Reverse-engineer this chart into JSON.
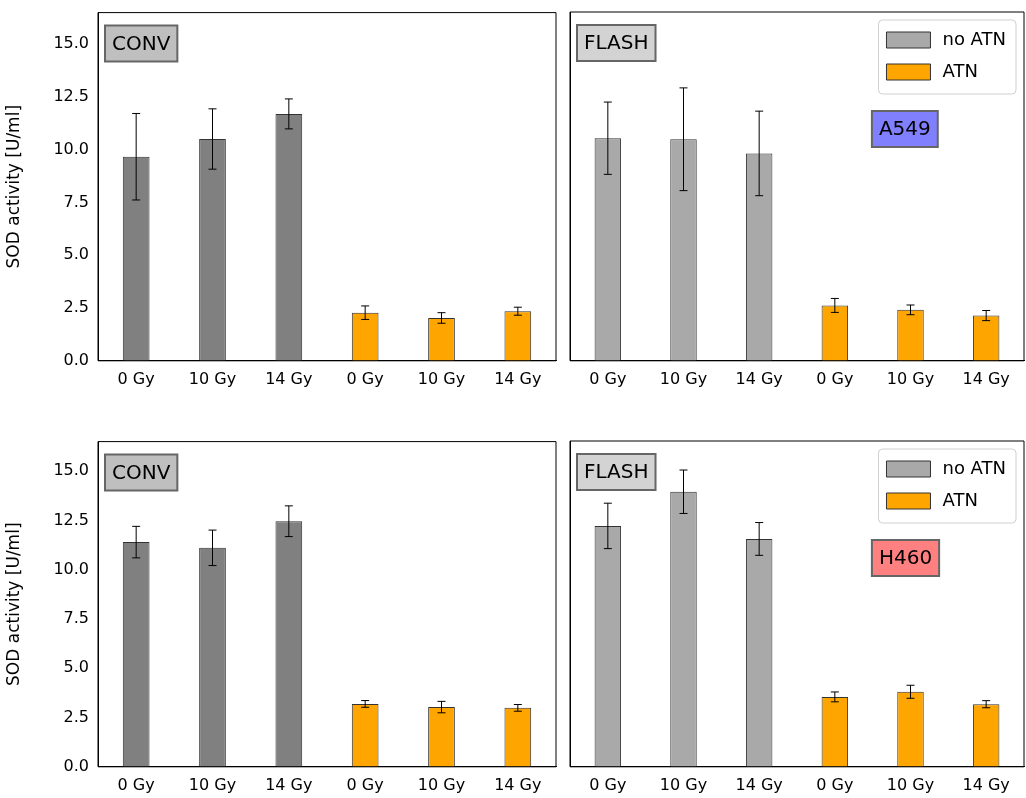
{
  "chart_data": [
    {
      "type": "bar",
      "categories": [
        "0 Gy",
        "10 Gy",
        "14 Gy",
        "0 Gy",
        "10 Gy",
        "14 Gy"
      ],
      "ylabel": "SOD activity [U/ml]",
      "ylim": [
        0,
        16.5
      ],
      "yticks": [
        {
          "value": 0,
          "label": "0.0"
        },
        {
          "value": 2.5,
          "label": "2.5"
        },
        {
          "value": 5,
          "label": "5.0"
        },
        {
          "value": 7.5,
          "label": "7.5"
        },
        {
          "value": 10,
          "label": "10.0"
        },
        {
          "value": 12.5,
          "label": "12.5"
        },
        {
          "value": 15,
          "label": "15.0"
        }
      ],
      "annotations": [
        "CONV"
      ],
      "grid": false,
      "legend": false,
      "series": [
        {
          "color": "#808080",
          "values": [
            9.67,
            10.51,
            11.7,
            null,
            null,
            null
          ],
          "errors": [
            2.05,
            1.43,
            0.71,
            null,
            null,
            null
          ]
        },
        {
          "color": "#ffa500",
          "values": [
            null,
            null,
            null,
            2.28,
            2.03,
            2.35
          ],
          "errors": [
            null,
            null,
            null,
            0.32,
            0.25,
            0.19
          ]
        }
      ]
    },
    {
      "type": "bar",
      "categories": [
        "0 Gy",
        "10 Gy",
        "14 Gy",
        "0 Gy",
        "10 Gy",
        "14 Gy"
      ],
      "ylim": [
        0,
        16.5
      ],
      "yticks": [
        {
          "value": 0,
          "label": null
        },
        {
          "value": 2.5,
          "label": null
        },
        {
          "value": 5,
          "label": null
        },
        {
          "value": 7.5,
          "label": null
        },
        {
          "value": 10,
          "label": null
        },
        {
          "value": 12.5,
          "label": null
        },
        {
          "value": 15,
          "label": null
        }
      ],
      "tick_labels": "x",
      "annotations": [
        "FLASH",
        "A549"
      ],
      "grid": false,
      "legend": "top right",
      "series": [
        {
          "name": "no ATN",
          "color": "#a9a9a9",
          "values": [
            10.53,
            10.48,
            9.81,
            null,
            null,
            null
          ],
          "errors": [
            1.71,
            2.43,
            2.0,
            null,
            null,
            null
          ]
        },
        {
          "name": "ATN",
          "color": "#ffa500",
          "values": [
            null,
            null,
            null,
            2.62,
            2.41,
            2.14
          ],
          "errors": [
            null,
            null,
            null,
            0.33,
            0.23,
            0.24
          ]
        }
      ]
    },
    {
      "type": "bar",
      "categories": [
        "0 Gy",
        "10 Gy",
        "14 Gy",
        "0 Gy",
        "10 Gy",
        "14 Gy"
      ],
      "ylabel": "SOD activity [U/ml]",
      "ylim": [
        0,
        16.5
      ],
      "yticks": [
        {
          "value": 0,
          "label": "0.0"
        },
        {
          "value": 2.5,
          "label": "2.5"
        },
        {
          "value": 5,
          "label": "5.0"
        },
        {
          "value": 7.5,
          "label": "7.5"
        },
        {
          "value": 10,
          "label": "10.0"
        },
        {
          "value": 12.5,
          "label": "12.5"
        },
        {
          "value": 15,
          "label": "15.0"
        }
      ],
      "annotations": [
        "CONV"
      ],
      "grid": false,
      "legend": false,
      "series": [
        {
          "color": "#808080",
          "values": [
            11.4,
            11.11,
            12.46,
            null,
            null,
            null
          ],
          "errors": [
            0.8,
            0.9,
            0.78,
            null,
            null,
            null
          ]
        },
        {
          "color": "#ffa500",
          "values": [
            null,
            null,
            null,
            3.19,
            3.03,
            2.99
          ],
          "errors": [
            null,
            null,
            null,
            0.17,
            0.29,
            0.17
          ]
        }
      ]
    },
    {
      "type": "bar",
      "categories": [
        "0 Gy",
        "10 Gy",
        "14 Gy",
        "0 Gy",
        "10 Gy",
        "14 Gy"
      ],
      "ylim": [
        0,
        16.5
      ],
      "yticks": [
        {
          "value": 0,
          "label": null
        },
        {
          "value": 2.5,
          "label": null
        },
        {
          "value": 5,
          "label": null
        },
        {
          "value": 7.5,
          "label": null
        },
        {
          "value": 10,
          "label": null
        },
        {
          "value": 12.5,
          "label": null
        },
        {
          "value": 15,
          "label": null
        }
      ],
      "tick_labels": "x",
      "annotations": [
        "FLASH",
        "H460"
      ],
      "grid": false,
      "legend": "top right",
      "series": [
        {
          "name": "no ATN",
          "color": "#a9a9a9",
          "values": [
            12.2,
            13.93,
            11.54,
            null,
            null,
            null
          ],
          "errors": [
            1.15,
            1.1,
            0.83,
            null,
            null,
            null
          ]
        },
        {
          "name": "ATN",
          "color": "#ffa500",
          "values": [
            null,
            null,
            null,
            3.54,
            3.8,
            3.17
          ],
          "errors": [
            null,
            null,
            null,
            0.25,
            0.33,
            0.18
          ]
        }
      ]
    }
  ]
}
